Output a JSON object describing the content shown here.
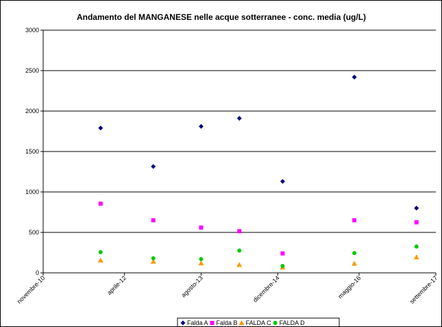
{
  "chart_data": {
    "type": "scatter",
    "title": "Andamento del MANGANESE nelle acque sotterranee - conc. media (ug/L)",
    "xlabel": "",
    "ylabel": "",
    "ylim": [
      0,
      3000
    ],
    "yticks": [
      "0",
      "500",
      "1000",
      "1500",
      "2000",
      "2500",
      "3000"
    ],
    "xlim": [
      "2010-11-01",
      "2017-09-01"
    ],
    "xticks": [
      {
        "label": "novembre-10",
        "date": "2010-11-01"
      },
      {
        "label": "aprile-12",
        "date": "2012-04-01"
      },
      {
        "label": "agosto-13",
        "date": "2013-08-01"
      },
      {
        "label": "dicembre-14",
        "date": "2014-12-01"
      },
      {
        "label": "maggio-16",
        "date": "2016-05-01"
      },
      {
        "label": "settembre-17",
        "date": "2017-09-01"
      }
    ],
    "grid": true,
    "legend_position": "bottom",
    "series": [
      {
        "name": "Falda A",
        "color": "#000080",
        "marker": "diamond",
        "points": [
          {
            "x": "2011-11-01",
            "y": 1790
          },
          {
            "x": "2012-10-01",
            "y": 1315
          },
          {
            "x": "2013-08-01",
            "y": 1810
          },
          {
            "x": "2014-04-01",
            "y": 1910
          },
          {
            "x": "2015-01-01",
            "y": 1130
          },
          {
            "x": "2016-04-01",
            "y": 2420
          },
          {
            "x": "2017-05-01",
            "y": 800
          }
        ]
      },
      {
        "name": "Falda B",
        "color": "#FF00FF",
        "marker": "square",
        "points": [
          {
            "x": "2011-11-01",
            "y": 855
          },
          {
            "x": "2012-10-01",
            "y": 650
          },
          {
            "x": "2013-08-01",
            "y": 560
          },
          {
            "x": "2014-04-01",
            "y": 515
          },
          {
            "x": "2015-01-01",
            "y": 240
          },
          {
            "x": "2016-04-01",
            "y": 650
          },
          {
            "x": "2017-05-01",
            "y": 625
          }
        ]
      },
      {
        "name": "FALDA C",
        "color": "#FF9900",
        "marker": "triangle",
        "points": [
          {
            "x": "2011-11-01",
            "y": 155
          },
          {
            "x": "2012-10-01",
            "y": 140
          },
          {
            "x": "2013-08-01",
            "y": 120
          },
          {
            "x": "2014-04-01",
            "y": 100
          },
          {
            "x": "2015-01-01",
            "y": 70
          },
          {
            "x": "2016-04-01",
            "y": 115
          },
          {
            "x": "2017-05-01",
            "y": 195
          }
        ]
      },
      {
        "name": "FALDA D",
        "color": "#00CC00",
        "marker": "circle",
        "points": [
          {
            "x": "2011-11-01",
            "y": 255
          },
          {
            "x": "2012-10-01",
            "y": 180
          },
          {
            "x": "2013-08-01",
            "y": 170
          },
          {
            "x": "2014-04-01",
            "y": 275
          },
          {
            "x": "2015-01-01",
            "y": 85
          },
          {
            "x": "2016-04-01",
            "y": 245
          },
          {
            "x": "2017-05-01",
            "y": 325
          }
        ]
      }
    ]
  }
}
